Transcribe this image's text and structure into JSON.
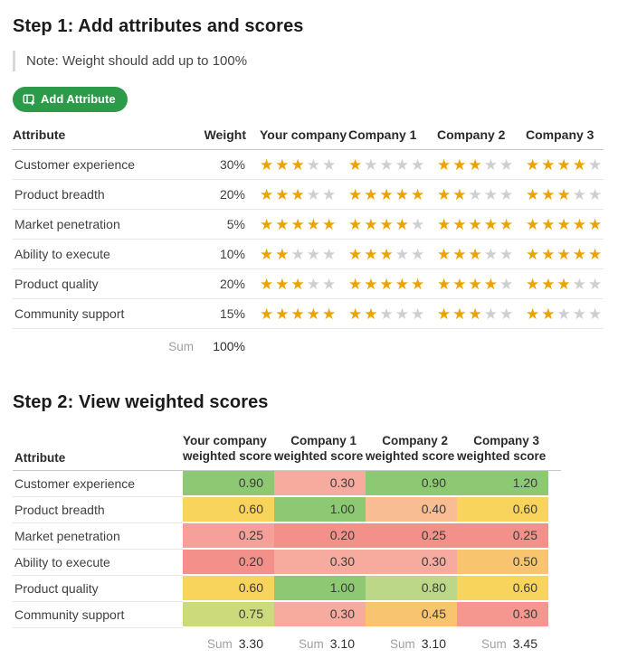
{
  "colors": {
    "button_green": "#2c9b49",
    "star_filled": "#eba300",
    "star_empty": "#cfcfcf"
  },
  "step1": {
    "title": "Step 1: Add attributes and scores",
    "note": "Note: Weight should add up to 100%",
    "add_button_label": "Add Attribute",
    "add_button_icon": "table-add-icon",
    "table": {
      "headers": {
        "attribute": "Attribute",
        "weight": "Weight",
        "companies": [
          "Your company",
          "Company 1",
          "Company 2",
          "Company 3"
        ]
      },
      "max_stars": 5,
      "rows": [
        {
          "attribute": "Customer experience",
          "weight": "30%",
          "ratings": [
            3,
            1,
            3,
            4
          ]
        },
        {
          "attribute": "Product breadth",
          "weight": "20%",
          "ratings": [
            3,
            5,
            2,
            3
          ]
        },
        {
          "attribute": "Market penetration",
          "weight": "5%",
          "ratings": [
            5,
            4,
            5,
            5
          ]
        },
        {
          "attribute": "Ability to execute",
          "weight": "10%",
          "ratings": [
            2,
            3,
            3,
            5
          ]
        },
        {
          "attribute": "Product quality",
          "weight": "20%",
          "ratings": [
            3,
            5,
            4,
            3
          ]
        },
        {
          "attribute": "Community support",
          "weight": "15%",
          "ratings": [
            5,
            2,
            3,
            2
          ]
        }
      ],
      "sum_label": "Sum",
      "sum_value": "100%"
    }
  },
  "step2": {
    "title": "Step 2: View weighted scores",
    "table": {
      "attribute_header": "Attribute",
      "company_headers": [
        [
          "Your company",
          "weighted score"
        ],
        [
          "Company 1",
          "weighted score"
        ],
        [
          "Company 2",
          "weighted score"
        ],
        [
          "Company 3",
          "weighted score"
        ]
      ],
      "rows": [
        {
          "attribute": "Customer experience",
          "cells": [
            {
              "value": "0.90",
              "color": "#8dc873"
            },
            {
              "value": "0.30",
              "color": "#f7aa9e"
            },
            {
              "value": "0.90",
              "color": "#8dc873"
            },
            {
              "value": "1.20",
              "color": "#8dc873"
            }
          ]
        },
        {
          "attribute": "Product breadth",
          "cells": [
            {
              "value": "0.60",
              "color": "#f9d45c"
            },
            {
              "value": "1.00",
              "color": "#8dc873"
            },
            {
              "value": "0.40",
              "color": "#f8bd92"
            },
            {
              "value": "0.60",
              "color": "#f9d45c"
            }
          ]
        },
        {
          "attribute": "Market penetration",
          "cells": [
            {
              "value": "0.25",
              "color": "#f7a099"
            },
            {
              "value": "0.20",
              "color": "#f4908a"
            },
            {
              "value": "0.25",
              "color": "#f4908a"
            },
            {
              "value": "0.25",
              "color": "#f4908a"
            }
          ]
        },
        {
          "attribute": "Ability to execute",
          "cells": [
            {
              "value": "0.20",
              "color": "#f4908a"
            },
            {
              "value": "0.30",
              "color": "#f7aa9e"
            },
            {
              "value": "0.30",
              "color": "#f7aa9e"
            },
            {
              "value": "0.50",
              "color": "#f8c46d"
            }
          ]
        },
        {
          "attribute": "Product quality",
          "cells": [
            {
              "value": "0.60",
              "color": "#f9d45c"
            },
            {
              "value": "1.00",
              "color": "#8dc873"
            },
            {
              "value": "0.80",
              "color": "#bcd787"
            },
            {
              "value": "0.60",
              "color": "#f9d45c"
            }
          ]
        },
        {
          "attribute": "Community support",
          "cells": [
            {
              "value": "0.75",
              "color": "#cdda7c"
            },
            {
              "value": "0.30",
              "color": "#f7aa9e"
            },
            {
              "value": "0.45",
              "color": "#f9c470"
            },
            {
              "value": "0.30",
              "color": "#f5968f"
            }
          ]
        }
      ],
      "sum_label": "Sum",
      "sum_values": [
        "3.30",
        "3.10",
        "3.10",
        "3.45"
      ]
    }
  }
}
